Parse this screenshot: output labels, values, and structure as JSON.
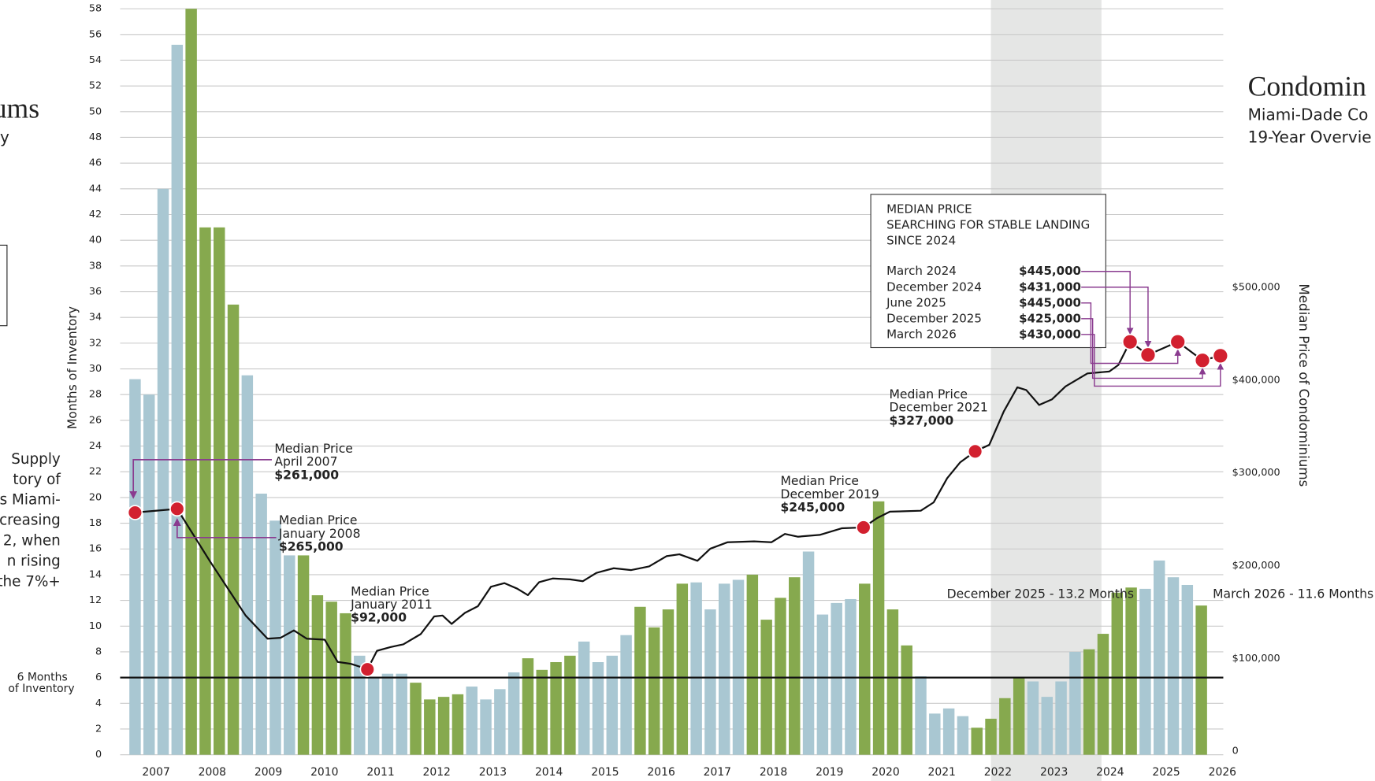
{
  "left_panel": {
    "title_fragment": "ums",
    "subtitle_fragment": "y",
    "paragraph_lines": [
      "Supply",
      "tory of",
      "s Miami-",
      "creasing",
      "2, when",
      "n rising",
      "the 7%+"
    ]
  },
  "right_panel": {
    "title": "Condomin",
    "subtitle_lines": [
      "Miami-Dade Co",
      "19-Year Overvie"
    ]
  },
  "chart_data": {
    "type": "bar",
    "y_label": "Months of Inventory",
    "y2_label": "Median Price of Condominiums",
    "x": [
      2007,
      2007.25,
      2007.5,
      2007.75,
      2008,
      2008.25,
      2008.5,
      2008.75,
      2009,
      2009.25,
      2009.5,
      2009.75,
      2010,
      2010.25,
      2010.5,
      2010.75,
      2011,
      2011.25,
      2011.5,
      2011.75,
      2012,
      2012.25,
      2012.5,
      2012.75,
      2013,
      2013.25,
      2013.5,
      2013.75,
      2014,
      2014.25,
      2014.5,
      2014.75,
      2015,
      2015.25,
      2015.5,
      2015.75,
      2016,
      2016.25,
      2016.5,
      2016.75,
      2017,
      2017.25,
      2017.5,
      2017.75,
      2018,
      2018.25,
      2018.5,
      2018.75,
      2019,
      2019.25,
      2019.5,
      2019.75,
      2020,
      2020.25,
      2020.5,
      2020.75,
      2021,
      2021.25,
      2021.5,
      2021.75,
      2022,
      2022.25,
      2022.5,
      2022.75,
      2023,
      2023.25,
      2023.5,
      2023.75,
      2024,
      2024.25,
      2024.5,
      2024.75,
      2025,
      2025.25,
      2025.5,
      2025.75,
      2026
    ],
    "values": [
      29.2,
      28,
      44,
      55.2,
      58,
      41,
      41,
      35,
      29.5,
      20.3,
      18.2,
      15.5,
      15.5,
      12.4,
      11.9,
      11,
      7.7,
      6,
      6.3,
      6.3,
      5.6,
      4.3,
      4.5,
      4.7,
      5.3,
      4.3,
      5.1,
      6.4,
      7.5,
      6.6,
      7.2,
      7.7,
      8.8,
      7.2,
      7.7,
      9.3,
      11.5,
      9.9,
      11.3,
      13.3,
      13.4,
      11.3,
      13.3,
      13.6,
      14,
      10.5,
      12.2,
      13.8,
      15.8,
      10.9,
      11.8,
      12.1,
      13.3,
      19.7,
      11.3,
      8.5,
      6.1,
      3.2,
      3.6,
      3,
      2.1,
      2.8,
      4.4,
      6,
      5.7,
      4.5,
      5.7,
      8,
      8.2,
      9.4,
      12.6,
      13,
      12.9,
      15.1,
      13.8,
      13.2,
      11.6
    ],
    "bar_colors": [
      "#a9c7d2",
      "#a9c7d2",
      "#a9c7d2",
      "#a9c7d2",
      "#86a94e",
      "#86a94e",
      "#86a94e",
      "#86a94e",
      "#a9c7d2",
      "#a9c7d2",
      "#a9c7d2",
      "#a9c7d2",
      "#86a94e",
      "#86a94e",
      "#86a94e",
      "#86a94e",
      "#a9c7d2",
      "#a9c7d2",
      "#a9c7d2",
      "#a9c7d2",
      "#86a94e",
      "#86a94e",
      "#86a94e",
      "#86a94e",
      "#a9c7d2",
      "#a9c7d2",
      "#a9c7d2",
      "#a9c7d2",
      "#86a94e",
      "#86a94e",
      "#86a94e",
      "#86a94e",
      "#a9c7d2",
      "#a9c7d2",
      "#a9c7d2",
      "#a9c7d2",
      "#86a94e",
      "#86a94e",
      "#86a94e",
      "#86a94e",
      "#a9c7d2",
      "#a9c7d2",
      "#a9c7d2",
      "#a9c7d2",
      "#86a94e",
      "#86a94e",
      "#86a94e",
      "#86a94e",
      "#a9c7d2",
      "#a9c7d2",
      "#a9c7d2",
      "#a9c7d2",
      "#86a94e",
      "#86a94e",
      "#86a94e",
      "#86a94e",
      "#a9c7d2",
      "#a9c7d2",
      "#a9c7d2",
      "#a9c7d2",
      "#86a94e",
      "#86a94e",
      "#86a94e",
      "#86a94e",
      "#a9c7d2",
      "#a9c7d2",
      "#a9c7d2",
      "#a9c7d2",
      "#86a94e",
      "#86a94e",
      "#86a94e",
      "#86a94e",
      "#a9c7d2",
      "#a9c7d2",
      "#a9c7d2",
      "#a9c7d2",
      "#86a94e"
    ],
    "xlim": [
      2006.734,
      2026.391
    ],
    "xticks": [
      2007,
      2008,
      2009,
      2010,
      2011,
      2012,
      2013,
      2014,
      2015,
      2016,
      2017,
      2018,
      2019,
      2020,
      2021,
      2022,
      2023,
      2024,
      2025,
      2026
    ],
    "ylim": [
      0,
      58
    ],
    "yticks": [
      0,
      2,
      4,
      6,
      8,
      10,
      12,
      14,
      16,
      18,
      20,
      22,
      24,
      26,
      28,
      30,
      32,
      34,
      36,
      38,
      40,
      42,
      44,
      46,
      48,
      50,
      52,
      54,
      56,
      58
    ],
    "y2lim": [
      0,
      804000
    ],
    "y2ticks": [
      0,
      {
        "value": 100000,
        "label": "$100,000"
      },
      {
        "value": 200000,
        "label": "$200,000"
      },
      {
        "value": 300000,
        "label": "$300,000"
      },
      {
        "value": 400000,
        "label": "$400,000"
      },
      {
        "value": 500000,
        "label": "$500,000"
      }
    ],
    "grid": true,
    "highlight_span": [
      2022.25,
      2024.22
    ],
    "line": {
      "axis": "y2",
      "color": "#111111",
      "x": [
        2007,
        2007.75,
        2008.34,
        2008.97,
        2009.36,
        2009.59,
        2009.83,
        2010.06,
        2010.38,
        2010.61,
        2010.84,
        2011,
        2011.14,
        2011.31,
        2011.55,
        2011.78,
        2012.09,
        2012.33,
        2012.48,
        2012.64,
        2012.88,
        2013.11,
        2013.34,
        2013.58,
        2013.81,
        2014,
        2014.2,
        2014.44,
        2014.75,
        2014.98,
        2015.22,
        2015.53,
        2015.84,
        2016.16,
        2016.47,
        2016.7,
        2017.02,
        2017.25,
        2017.56,
        2018.03,
        2018.34,
        2018.58,
        2018.81,
        2019.2,
        2019.59,
        2019.98,
        2020.22,
        2020.45,
        2021,
        2021.23,
        2021.47,
        2021.7,
        2021.97,
        2022.22,
        2022.48,
        2022.72,
        2022.88,
        2023.11,
        2023.34,
        2023.58,
        2023.97,
        2024.36,
        2024.52,
        2024.73,
        2025.05,
        2025.58,
        2026.02,
        2026.34
      ],
      "values": [
        261000,
        265000,
        208000,
        150000,
        125000,
        126000,
        134000,
        125000,
        124000,
        100000,
        98000,
        95000,
        92000,
        112000,
        116000,
        119000,
        130000,
        149000,
        150000,
        141000,
        153000,
        160000,
        181000,
        185000,
        179000,
        172000,
        186000,
        190000,
        189000,
        187000,
        196000,
        201000,
        199000,
        203000,
        214000,
        216000,
        209000,
        222000,
        229000,
        230000,
        229000,
        238000,
        235000,
        237000,
        244000,
        245000,
        255000,
        262000,
        263000,
        272000,
        298000,
        315000,
        327000,
        334000,
        370000,
        396000,
        393000,
        377000,
        383000,
        397000,
        411000,
        413000,
        420000,
        445000,
        431000,
        445000,
        425000,
        430000
      ]
    },
    "reference_line": {
      "value": 6,
      "label_lines": [
        "6 Months",
        "of Inventory"
      ]
    },
    "bar_annotations": [
      "December 2025 - 13.2 Months",
      "March 2026 - 11.6 Months"
    ],
    "price_annotations": [
      {
        "x": 2007,
        "value": 261000,
        "lines": [
          "Median Price",
          "April 2007"
        ],
        "value_label": "$261,000"
      },
      {
        "x": 2007.75,
        "value": 265000,
        "lines": [
          "Median Price",
          "January 2008"
        ],
        "value_label": "$265,000"
      },
      {
        "x": 2011.14,
        "value": 92000,
        "lines": [
          "Median Price",
          "January 2011"
        ],
        "value_label": "$92,000"
      },
      {
        "x": 2019.98,
        "value": 245000,
        "lines": [
          "Median Price",
          "December 2019"
        ],
        "value_label": "$245,000"
      },
      {
        "x": 2021.97,
        "value": 327000,
        "lines": [
          "Median Price",
          "December 2021"
        ],
        "value_label": "$327,000"
      }
    ],
    "price_box": {
      "title_lines": [
        "MEDIAN PRICE",
        "SEARCHING FOR STABLE LANDING",
        "SINCE 2024"
      ],
      "entries": [
        {
          "date": "March 2024",
          "x": 2024.73,
          "value": 445000,
          "value_label": "$445,000"
        },
        {
          "date": "December 2024",
          "x": 2025.05,
          "value": 431000,
          "value_label": "$431,000"
        },
        {
          "date": "June 2025",
          "x": 2025.58,
          "value": 445000,
          "value_label": "$445,000"
        },
        {
          "date": "December 2025",
          "x": 2026.02,
          "value": 425000,
          "value_label": "$425,000"
        },
        {
          "date": "March 2026",
          "x": 2026.34,
          "value": 430000,
          "value_label": "$430,000"
        }
      ]
    }
  }
}
